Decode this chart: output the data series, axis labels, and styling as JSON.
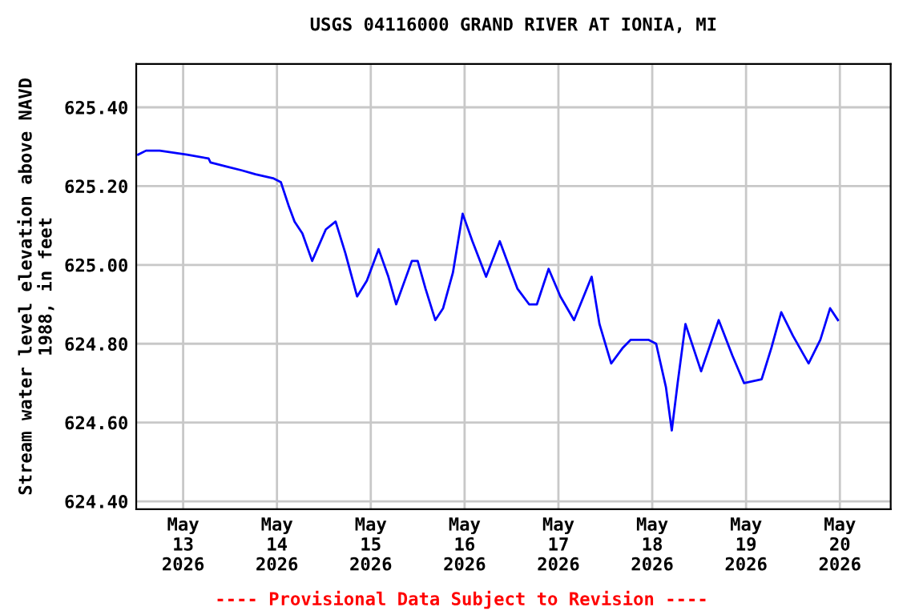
{
  "chart_data": {
    "type": "line",
    "title": "USGS 04116000 GRAND RIVER AT IONIA, MI",
    "ylabel": "Stream water level elevation above NAVD\n1988, in feet",
    "annotations": [
      "---- Provisional Data Subject to Revision ----"
    ],
    "x": [
      "2026-05-12T12:30",
      "2026-05-12T14:30",
      "2026-05-12T18:00",
      "2026-05-13T01:00",
      "2026-05-13T06:30",
      "2026-05-13T07:00",
      "2026-05-13T11:00",
      "2026-05-13T15:00",
      "2026-05-13T18:30",
      "2026-05-13T23:00",
      "2026-05-14T01:00",
      "2026-05-14T03:00",
      "2026-05-14T04:30",
      "2026-05-14T06:30",
      "2026-05-14T09:00",
      "2026-05-14T12:30",
      "2026-05-14T15:00",
      "2026-05-14T17:30",
      "2026-05-14T20:30",
      "2026-05-14T23:00",
      "2026-05-15T02:00",
      "2026-05-15T04:30",
      "2026-05-15T06:30",
      "2026-05-15T10:30",
      "2026-05-15T12:00",
      "2026-05-15T14:00",
      "2026-05-15T16:30",
      "2026-05-15T18:30",
      "2026-05-15T21:00",
      "2026-05-15T23:30",
      "2026-05-16T02:00",
      "2026-05-16T05:30",
      "2026-05-16T09:00",
      "2026-05-16T12:00",
      "2026-05-16T13:30",
      "2026-05-16T16:30",
      "2026-05-16T18:30",
      "2026-05-16T21:30",
      "2026-05-17T00:30",
      "2026-05-17T04:00",
      "2026-05-17T08:30",
      "2026-05-17T10:30",
      "2026-05-17T13:30",
      "2026-05-17T16:30",
      "2026-05-17T18:30",
      "2026-05-17T23:00",
      "2026-05-18T01:00",
      "2026-05-18T03:30",
      "2026-05-18T05:00",
      "2026-05-18T06:30",
      "2026-05-18T08:30",
      "2026-05-18T10:30",
      "2026-05-18T12:30",
      "2026-05-18T17:00",
      "2026-05-18T20:30",
      "2026-05-18T23:30",
      "2026-05-19T04:00",
      "2026-05-19T06:30",
      "2026-05-19T09:00",
      "2026-05-19T12:00",
      "2026-05-19T16:00",
      "2026-05-19T19:00",
      "2026-05-19T21:30",
      "2026-05-19T23:30"
    ],
    "series": [
      {
        "color": "#0000ff",
        "values": [
          625.28,
          625.29,
          625.29,
          625.28,
          625.27,
          625.26,
          625.25,
          625.24,
          625.23,
          625.22,
          625.21,
          625.15,
          625.11,
          625.08,
          625.01,
          625.09,
          625.11,
          625.03,
          624.92,
          624.96,
          625.04,
          624.97,
          624.9,
          625.01,
          625.01,
          624.94,
          624.86,
          624.89,
          624.98,
          625.13,
          625.06,
          624.97,
          625.06,
          624.98,
          624.94,
          624.9,
          624.9,
          624.99,
          624.92,
          624.86,
          624.97,
          624.85,
          624.75,
          624.79,
          624.81,
          624.81,
          624.8,
          624.69,
          624.58,
          624.7,
          624.85,
          624.79,
          624.73,
          624.86,
          624.77,
          624.7,
          624.71,
          624.79,
          624.88,
          624.82,
          624.75,
          624.81,
          624.89,
          624.86
        ]
      }
    ],
    "xlim": [
      "2026-05-12T12:00",
      "2026-05-20T13:00"
    ],
    "xticks": [
      {
        "value": "2026-05-13",
        "label": "May\n13\n2026"
      },
      {
        "value": "2026-05-14",
        "label": "May\n14\n2026"
      },
      {
        "value": "2026-05-15",
        "label": "May\n15\n2026"
      },
      {
        "value": "2026-05-16",
        "label": "May\n16\n2026"
      },
      {
        "value": "2026-05-17",
        "label": "May\n17\n2026"
      },
      {
        "value": "2026-05-18",
        "label": "May\n18\n2026"
      },
      {
        "value": "2026-05-19",
        "label": "May\n19\n2026"
      },
      {
        "value": "2026-05-20",
        "label": "May\n20\n2026"
      }
    ],
    "ylim": [
      624.38,
      625.51
    ],
    "yticks": [
      {
        "value": 624.4,
        "label": "624.40"
      },
      {
        "value": 624.6,
        "label": "624.60"
      },
      {
        "value": 624.8,
        "label": "624.80"
      },
      {
        "value": 625.0,
        "label": "625.00"
      },
      {
        "value": 625.2,
        "label": "625.20"
      },
      {
        "value": 625.4,
        "label": "625.40"
      }
    ],
    "grid": true,
    "legend": false,
    "marker": "none",
    "line_style": "solid"
  }
}
